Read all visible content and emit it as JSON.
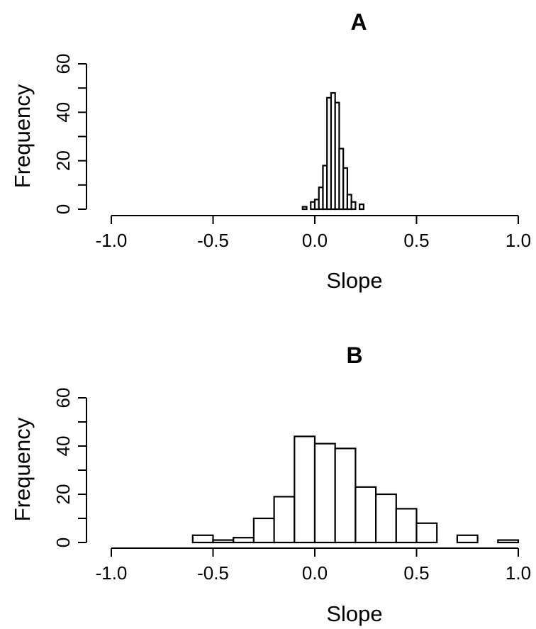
{
  "chart_data": [
    {
      "type": "bar",
      "title": "A",
      "xlabel": "Slope",
      "ylabel": "Frequency",
      "xlim": [
        -1.0,
        1.0
      ],
      "ylim": [
        0,
        60
      ],
      "xticks": [
        -1.0,
        -0.5,
        0.0,
        0.5,
        1.0
      ],
      "xtick_labels": [
        "-1.0",
        "-0.5",
        "0.0",
        "0.5",
        "1.0"
      ],
      "yticks": [
        0,
        20,
        40,
        60
      ],
      "ytick_labels": [
        "0",
        "20",
        "40",
        "60"
      ],
      "bin_edges": [
        -0.06,
        -0.04,
        -0.02,
        0.0,
        0.02,
        0.04,
        0.06,
        0.08,
        0.1,
        0.12,
        0.14,
        0.16,
        0.18,
        0.2,
        0.22,
        0.24
      ],
      "values": [
        1,
        0,
        3,
        4,
        9,
        18,
        46,
        48,
        44,
        25,
        17,
        6,
        3,
        0,
        2
      ]
    },
    {
      "type": "bar",
      "title": "B",
      "xlabel": "Slope",
      "ylabel": "Frequency",
      "xlim": [
        -1.0,
        1.0
      ],
      "ylim": [
        0,
        60
      ],
      "xticks": [
        -1.0,
        -0.5,
        0.0,
        0.5,
        1.0
      ],
      "xtick_labels": [
        "-1.0",
        "-0.5",
        "0.0",
        "0.5",
        "1.0"
      ],
      "yticks": [
        0,
        20,
        40,
        60
      ],
      "ytick_labels": [
        "0",
        "20",
        "40",
        "60"
      ],
      "bin_edges": [
        -0.6,
        -0.5,
        -0.4,
        -0.3,
        -0.2,
        -0.1,
        0.0,
        0.1,
        0.2,
        0.3,
        0.4,
        0.5,
        0.6,
        0.7,
        0.8,
        0.9,
        1.0
      ],
      "values": [
        3,
        1,
        2,
        10,
        19,
        44,
        41,
        39,
        23,
        20,
        14,
        8,
        0,
        3,
        0,
        1
      ]
    }
  ]
}
